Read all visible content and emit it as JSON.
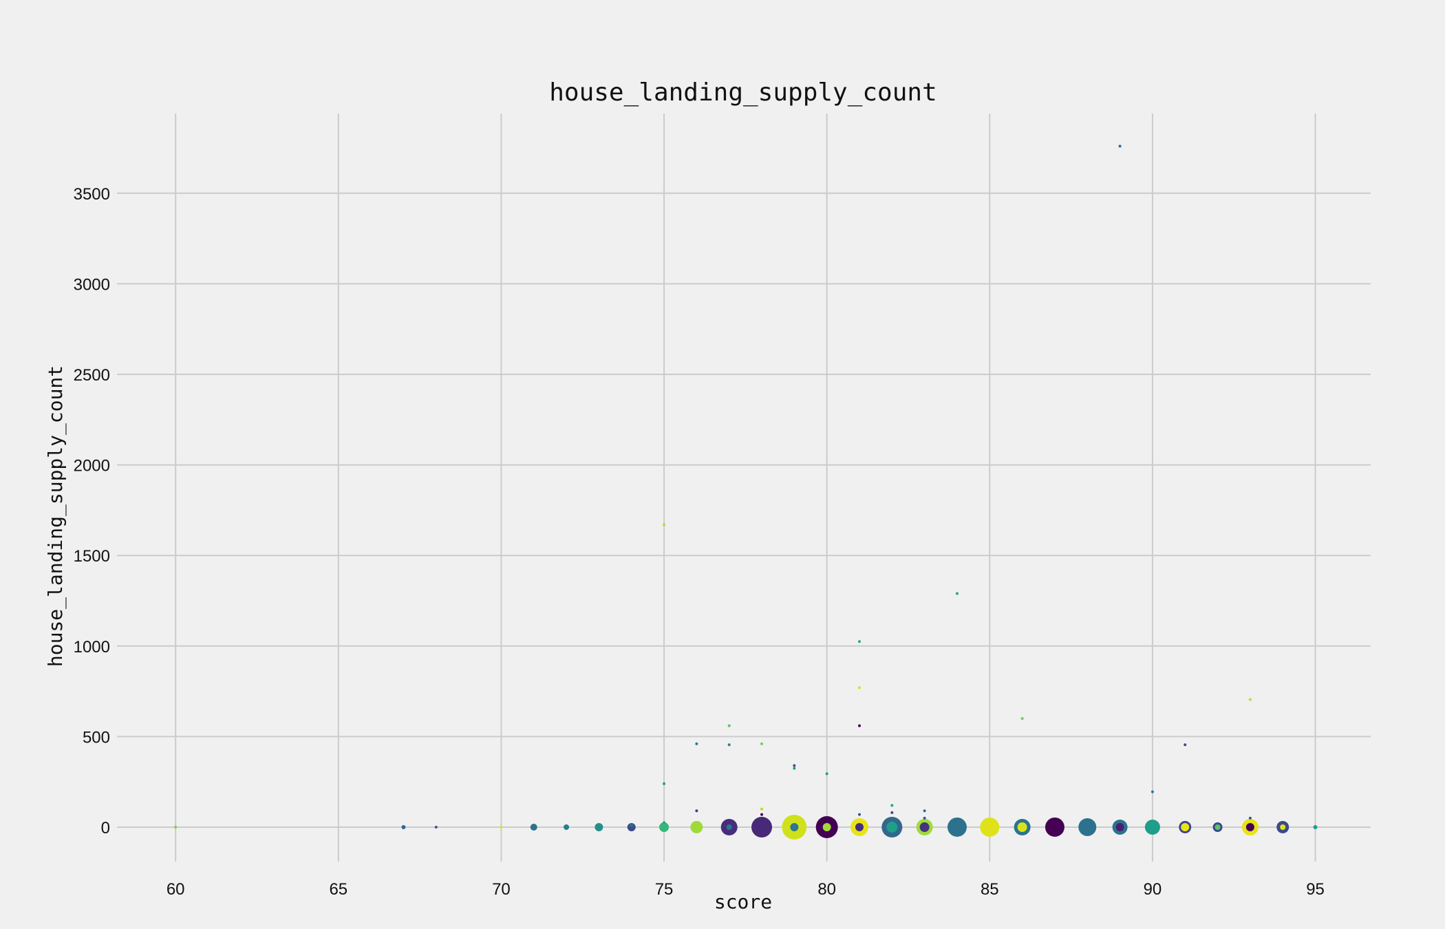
{
  "chart_data": {
    "type": "scatter",
    "title": "house_landing_supply_count",
    "xlabel": "score",
    "ylabel": "house_landing_supply_count",
    "xlim": [
      58.2,
      96.7
    ],
    "ylim": [
      -190,
      3940
    ],
    "xticks": [
      60,
      65,
      70,
      75,
      80,
      85,
      90,
      95
    ],
    "yticks": [
      0,
      500,
      1000,
      1500,
      2000,
      2500,
      3000,
      3500
    ],
    "grid": true,
    "background": "#f0f0f0",
    "colormap": "viridis",
    "points": [
      {
        "x": 60,
        "y": 0,
        "r": 2,
        "color": "#7ad151"
      },
      {
        "x": 67,
        "y": 0,
        "r": 3,
        "color": "#31688e"
      },
      {
        "x": 68,
        "y": 0,
        "r": 2,
        "color": "#3b528b"
      },
      {
        "x": 70,
        "y": 0,
        "r": 2,
        "color": "#d8e219"
      },
      {
        "x": 71,
        "y": 0,
        "r": 5,
        "color": "#2c728e"
      },
      {
        "x": 72,
        "y": 0,
        "r": 4,
        "color": "#287d8e"
      },
      {
        "x": 73,
        "y": 0,
        "r": 6,
        "color": "#21918c"
      },
      {
        "x": 74,
        "y": 0,
        "r": 6,
        "color": "#3e4989"
      },
      {
        "x": 74,
        "y": 10,
        "r": 3,
        "color": "#31688e"
      },
      {
        "x": 75,
        "y": 0,
        "r": 7,
        "color": "#35b779"
      },
      {
        "x": 75,
        "y": 25,
        "r": 2,
        "color": "#22a884"
      },
      {
        "x": 75,
        "y": 240,
        "r": 2,
        "color": "#1f9e89"
      },
      {
        "x": 75,
        "y": 1670,
        "r": 2,
        "color": "#b5de2b"
      },
      {
        "x": 76,
        "y": 0,
        "r": 9,
        "color": "#a0da39"
      },
      {
        "x": 76,
        "y": 90,
        "r": 2,
        "color": "#443983"
      },
      {
        "x": 76,
        "y": 460,
        "r": 2,
        "color": "#2a788e"
      },
      {
        "x": 77,
        "y": 0,
        "r": 12,
        "color": "#472d7b"
      },
      {
        "x": 77,
        "y": 0,
        "r": 4,
        "color": "#2a788e"
      },
      {
        "x": 77,
        "y": 455,
        "r": 2,
        "color": "#26828e"
      },
      {
        "x": 77,
        "y": 560,
        "r": 2,
        "color": "#54c568"
      },
      {
        "x": 78,
        "y": 0,
        "r": 15,
        "color": "#482878"
      },
      {
        "x": 78,
        "y": 70,
        "r": 2,
        "color": "#440154"
      },
      {
        "x": 78,
        "y": 100,
        "r": 2,
        "color": "#b5de2b"
      },
      {
        "x": 78,
        "y": 460,
        "r": 2,
        "color": "#6ece58"
      },
      {
        "x": 79,
        "y": 0,
        "r": 18,
        "color": "#d0e11c"
      },
      {
        "x": 79,
        "y": 0,
        "r": 6,
        "color": "#2a788e"
      },
      {
        "x": 79,
        "y": 325,
        "r": 2,
        "color": "#1f9e89"
      },
      {
        "x": 79,
        "y": 340,
        "r": 2,
        "color": "#3b528b"
      },
      {
        "x": 80,
        "y": 0,
        "r": 16,
        "color": "#440154"
      },
      {
        "x": 80,
        "y": 0,
        "r": 6,
        "color": "#a0da39"
      },
      {
        "x": 80,
        "y": 295,
        "r": 2,
        "color": "#1f9e89"
      },
      {
        "x": 81,
        "y": 0,
        "r": 13,
        "color": "#e7e419"
      },
      {
        "x": 81,
        "y": 0,
        "r": 6,
        "color": "#472d7b"
      },
      {
        "x": 81,
        "y": 70,
        "r": 2,
        "color": "#3b528b"
      },
      {
        "x": 81,
        "y": 560,
        "r": 2,
        "color": "#440154"
      },
      {
        "x": 81,
        "y": 770,
        "r": 2,
        "color": "#d8e219"
      },
      {
        "x": 81,
        "y": 1025,
        "r": 2,
        "color": "#22a884"
      },
      {
        "x": 82,
        "y": 0,
        "r": 15,
        "color": "#31688e"
      },
      {
        "x": 82,
        "y": 0,
        "r": 8,
        "color": "#1f9e89"
      },
      {
        "x": 82,
        "y": 80,
        "r": 2,
        "color": "#3e4989"
      },
      {
        "x": 82,
        "y": 120,
        "r": 2,
        "color": "#22a884"
      },
      {
        "x": 83,
        "y": 0,
        "r": 12,
        "color": "#a0da39"
      },
      {
        "x": 83,
        "y": 0,
        "r": 7,
        "color": "#46337e"
      },
      {
        "x": 83,
        "y": 50,
        "r": 2,
        "color": "#3b528b"
      },
      {
        "x": 83,
        "y": 90,
        "r": 2,
        "color": "#31688e"
      },
      {
        "x": 84,
        "y": 0,
        "r": 14,
        "color": "#2c728e"
      },
      {
        "x": 84,
        "y": 1290,
        "r": 2,
        "color": "#22a884"
      },
      {
        "x": 85,
        "y": 0,
        "r": 14,
        "color": "#dde318"
      },
      {
        "x": 86,
        "y": 0,
        "r": 12,
        "color": "#2c728e"
      },
      {
        "x": 86,
        "y": 0,
        "r": 7,
        "color": "#d8e219"
      },
      {
        "x": 86,
        "y": 600,
        "r": 2,
        "color": "#6ece58"
      },
      {
        "x": 87,
        "y": 0,
        "r": 14,
        "color": "#440154"
      },
      {
        "x": 88,
        "y": 0,
        "r": 13,
        "color": "#2c728e"
      },
      {
        "x": 89,
        "y": 0,
        "r": 11,
        "color": "#2c728e"
      },
      {
        "x": 89,
        "y": 0,
        "r": 6,
        "color": "#481f70"
      },
      {
        "x": 89,
        "y": 3760,
        "r": 2,
        "color": "#31688e"
      },
      {
        "x": 90,
        "y": 0,
        "r": 11,
        "color": "#1f9e89"
      },
      {
        "x": 90,
        "y": 195,
        "r": 2,
        "color": "#2a788e"
      },
      {
        "x": 91,
        "y": 0,
        "r": 9,
        "color": "#404688"
      },
      {
        "x": 91,
        "y": 0,
        "r": 6,
        "color": "#e7e419"
      },
      {
        "x": 91,
        "y": 455,
        "r": 2,
        "color": "#404688"
      },
      {
        "x": 92,
        "y": 0,
        "r": 7,
        "color": "#3e4989"
      },
      {
        "x": 92,
        "y": 0,
        "r": 4,
        "color": "#54c568"
      },
      {
        "x": 93,
        "y": 0,
        "r": 12,
        "color": "#e7e419"
      },
      {
        "x": 93,
        "y": 0,
        "r": 6,
        "color": "#440154"
      },
      {
        "x": 93,
        "y": 50,
        "r": 2,
        "color": "#3b528b"
      },
      {
        "x": 93,
        "y": 705,
        "r": 2,
        "color": "#b5de2b"
      },
      {
        "x": 94,
        "y": 0,
        "r": 9,
        "color": "#3e4989"
      },
      {
        "x": 94,
        "y": 0,
        "r": 4,
        "color": "#dde318"
      },
      {
        "x": 95,
        "y": 0,
        "r": 3,
        "color": "#1f9e89"
      }
    ]
  }
}
